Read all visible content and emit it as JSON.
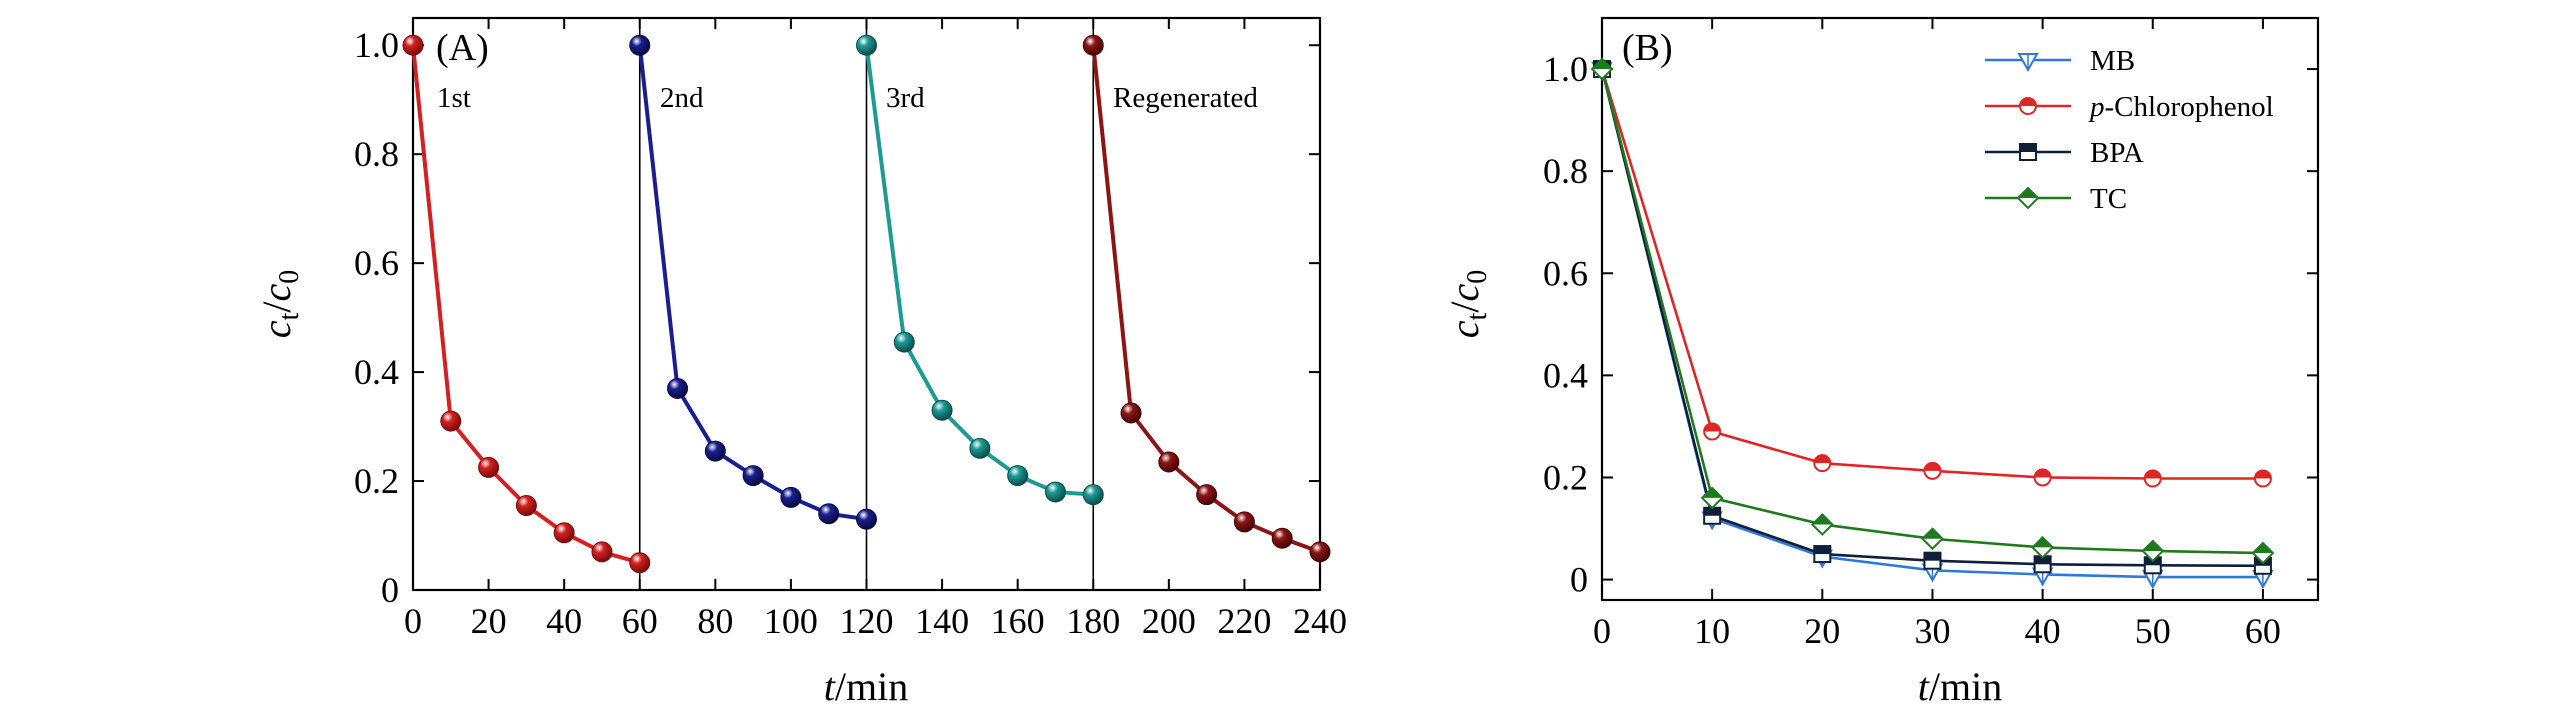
{
  "chart_data": [
    {
      "panel": "A",
      "type": "line",
      "panel_label": "(A)",
      "xlabel": "t/min",
      "ylabel": "ct/c0",
      "xlim": [
        0,
        240
      ],
      "ylim": [
        0,
        1.05
      ],
      "xticks": [
        0,
        20,
        40,
        60,
        80,
        100,
        120,
        140,
        160,
        180,
        200,
        220,
        240
      ],
      "yticks": [
        0,
        0.2,
        0.4,
        0.6,
        0.8,
        1.0
      ],
      "ytick_labels": [
        "0",
        "0.2",
        "0.4",
        "0.6",
        "0.8",
        "1.0"
      ],
      "separators": [
        60,
        120,
        180
      ],
      "series": [
        {
          "name": "1st",
          "color": "#d42020",
          "dark": "#7a0c0c",
          "x": [
            0,
            10,
            20,
            30,
            40,
            50,
            60
          ],
          "y": [
            1.0,
            0.31,
            0.225,
            0.155,
            0.105,
            0.07,
            0.05
          ]
        },
        {
          "name": "2nd",
          "color": "#1a1f8f",
          "dark": "#080b45",
          "x": [
            60,
            70,
            80,
            90,
            100,
            110,
            120
          ],
          "y": [
            1.0,
            0.37,
            0.255,
            0.21,
            0.17,
            0.14,
            0.13
          ]
        },
        {
          "name": "3rd",
          "color": "#1c9a94",
          "dark": "#0b4f4b",
          "x": [
            120,
            130,
            140,
            150,
            160,
            170,
            180
          ],
          "y": [
            1.0,
            0.455,
            0.33,
            0.26,
            0.21,
            0.18,
            0.175
          ]
        },
        {
          "name": "Regenerated",
          "color": "#8e1414",
          "dark": "#450606",
          "x": [
            180,
            190,
            200,
            210,
            220,
            230,
            240
          ],
          "y": [
            1.0,
            0.325,
            0.235,
            0.175,
            0.125,
            0.095,
            0.07
          ]
        }
      ]
    },
    {
      "panel": "B",
      "type": "line",
      "panel_label": "(B)",
      "xlabel": "t/min",
      "ylabel": "ct/c0",
      "xlim": [
        0,
        65
      ],
      "ylim": [
        -0.04,
        1.1
      ],
      "xticks": [
        0,
        10,
        20,
        30,
        40,
        50,
        60
      ],
      "yticks": [
        0,
        0.2,
        0.4,
        0.6,
        0.8,
        1.0
      ],
      "ytick_labels": [
        "0",
        "0.2",
        "0.4",
        "0.6",
        "0.8",
        "1.0"
      ],
      "legend_position": "top-right",
      "series": [
        {
          "name": "MB",
          "color": "#2f78d8",
          "marker": "triangle-down",
          "x": [
            0,
            10,
            20,
            30,
            40,
            50,
            60
          ],
          "y": [
            1.0,
            0.12,
            0.045,
            0.018,
            0.01,
            0.005,
            0.005
          ]
        },
        {
          "name": "p-Chlorophenol",
          "name_italic": "p",
          "name_rest": "-Chlorophenol",
          "color": "#e02525",
          "marker": "circle",
          "x": [
            0,
            10,
            20,
            30,
            40,
            50,
            60
          ],
          "y": [
            1.0,
            0.29,
            0.228,
            0.213,
            0.2,
            0.198,
            0.198
          ]
        },
        {
          "name": "BPA",
          "color": "#0e1f3a",
          "marker": "square",
          "x": [
            0,
            10,
            20,
            30,
            40,
            50,
            60
          ],
          "y": [
            1.0,
            0.125,
            0.05,
            0.037,
            0.03,
            0.028,
            0.027
          ]
        },
        {
          "name": "TC",
          "color": "#1f7a1f",
          "marker": "diamond",
          "x": [
            0,
            10,
            20,
            30,
            40,
            50,
            60
          ],
          "y": [
            1.0,
            0.16,
            0.108,
            0.08,
            0.063,
            0.056,
            0.052
          ]
        }
      ]
    }
  ]
}
